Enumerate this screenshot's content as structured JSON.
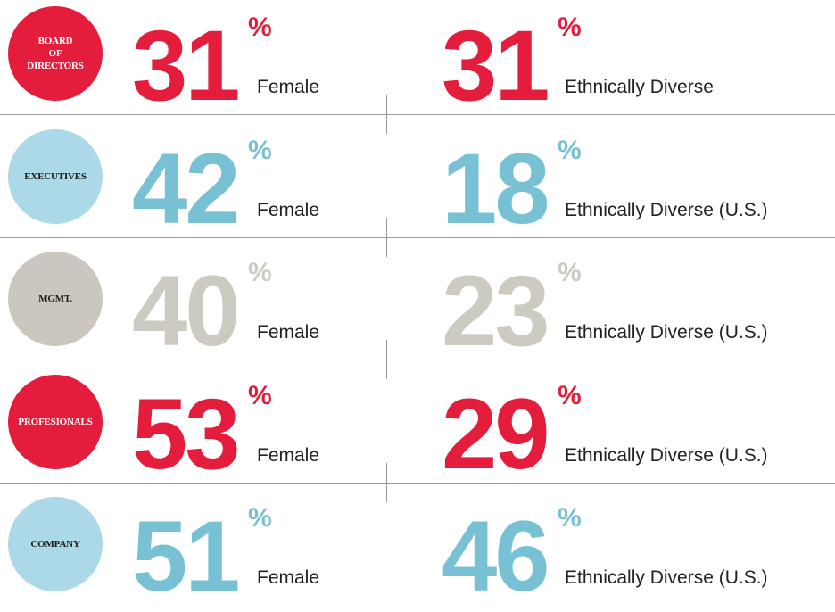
{
  "percent_sign": "%",
  "rows": [
    {
      "label": [
        "BOARD",
        "OF",
        "DIRECTORS"
      ],
      "circle_color": "#e31d3b",
      "label_color": "#ffffff",
      "number_color": "#e31d3b",
      "female": {
        "value": 31,
        "caption": "Female"
      },
      "ethnic": {
        "value": 31,
        "caption": "Ethnically Diverse"
      }
    },
    {
      "label": [
        "EXECUTIVES"
      ],
      "circle_color": "#acd9e7",
      "label_color": "#1a1a1a",
      "number_color": "#78c1d4",
      "female": {
        "value": 42,
        "caption": "Female"
      },
      "ethnic": {
        "value": 18,
        "caption": "Ethnically Diverse (U.S.)"
      }
    },
    {
      "label": [
        "MGMT."
      ],
      "circle_color": "#cbc7bf",
      "label_color": "#1a1a1a",
      "number_color": "#cdcac2",
      "female": {
        "value": 40,
        "caption": "Female"
      },
      "ethnic": {
        "value": 23,
        "caption": "Ethnically Diverse (U.S.)"
      }
    },
    {
      "label": [
        "PROFESIONALS"
      ],
      "circle_color": "#e31d3b",
      "label_color": "#ffffff",
      "number_color": "#e31d3b",
      "female": {
        "value": 53,
        "caption": "Female"
      },
      "ethnic": {
        "value": 29,
        "caption": "Ethnically Diverse (U.S.)"
      }
    },
    {
      "label": [
        "COMPANY"
      ],
      "circle_color": "#acd9e7",
      "label_color": "#1a1a1a",
      "number_color": "#78c1d4",
      "female": {
        "value": 51,
        "caption": "Female"
      },
      "ethnic": {
        "value": 46,
        "caption": "Ethnically Diverse (U.S.)"
      }
    }
  ]
}
